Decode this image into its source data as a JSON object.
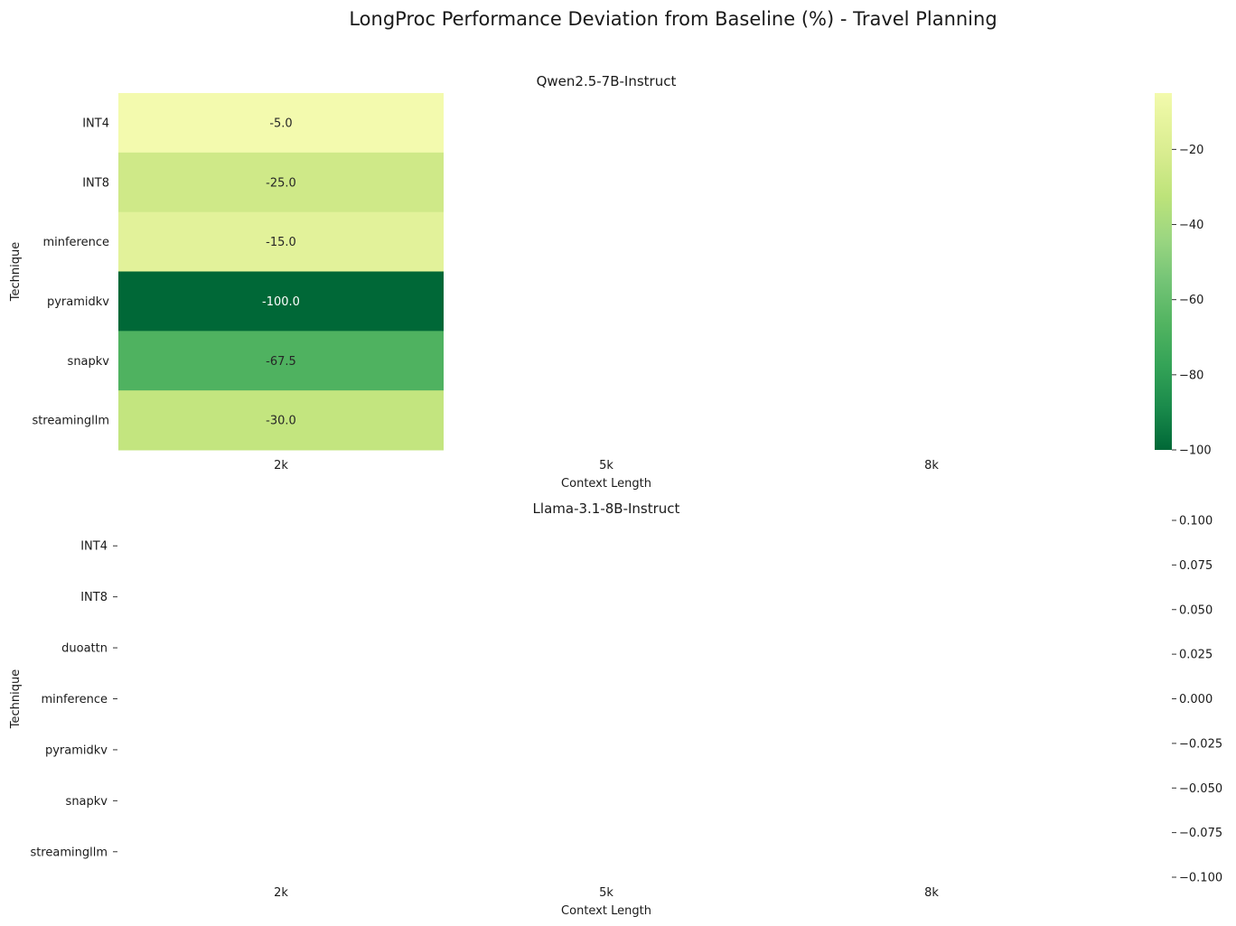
{
  "suptitle": "LongProc Performance Deviation from Baseline (%) - Travel Planning",
  "colormap": {
    "name": "YlGn",
    "stops": [
      {
        "v": -100,
        "c": "#006837"
      },
      {
        "v": -88.8,
        "c": "#1a8a4b"
      },
      {
        "v": -77.5,
        "c": "#34a357"
      },
      {
        "v": -66.3,
        "c": "#52b461"
      },
      {
        "v": -55.0,
        "c": "#74c476"
      },
      {
        "v": -43.8,
        "c": "#9bd681"
      },
      {
        "v": -32.5,
        "c": "#bde37a"
      },
      {
        "v": -21.3,
        "c": "#d8ec8f"
      },
      {
        "v": -10.0,
        "c": "#eaf6a2"
      },
      {
        "v": -5.0,
        "c": "#f3faae"
      }
    ]
  },
  "chart_data": [
    {
      "type": "heatmap",
      "title": "Qwen2.5-7B-Instruct",
      "xlabel": "Context Length",
      "ylabel": "Technique",
      "x_categories": [
        "2k",
        "5k",
        "8k"
      ],
      "y_categories": [
        "INT4",
        "INT8",
        "minference",
        "pyramidkv",
        "snapkv",
        "streamingllm"
      ],
      "values": [
        [
          -5.0,
          null,
          null
        ],
        [
          -25.0,
          null,
          null
        ],
        [
          -15.0,
          null,
          null
        ],
        [
          -100.0,
          null,
          null
        ],
        [
          -67.5,
          null,
          null
        ],
        [
          -30.0,
          null,
          null
        ]
      ],
      "annotations": [
        [
          "-5.0",
          "",
          ""
        ],
        [
          "-25.0",
          "",
          ""
        ],
        [
          "-15.0",
          "",
          ""
        ],
        [
          "-100.0",
          "",
          ""
        ],
        [
          "-67.5",
          "",
          ""
        ],
        [
          "-30.0",
          "",
          ""
        ]
      ],
      "colorbar": {
        "range": [
          -100,
          -5
        ],
        "ticks": [
          -20,
          -40,
          -60,
          -80,
          -100
        ],
        "tick_labels": [
          "−20",
          "−40",
          "−60",
          "−80",
          "−100"
        ]
      }
    },
    {
      "type": "heatmap",
      "title": "Llama-3.1-8B-Instruct",
      "xlabel": "Context Length",
      "ylabel": "Technique",
      "x_categories": [
        "2k",
        "5k",
        "8k"
      ],
      "y_categories": [
        "INT4",
        "INT8",
        "duoattn",
        "minference",
        "pyramidkv",
        "snapkv",
        "streamingllm"
      ],
      "values": [
        [
          null,
          null,
          null
        ],
        [
          null,
          null,
          null
        ],
        [
          null,
          null,
          null
        ],
        [
          null,
          null,
          null
        ],
        [
          null,
          null,
          null
        ],
        [
          null,
          null,
          null
        ],
        [
          null,
          null,
          null
        ]
      ],
      "colorbar": {
        "range": [
          -0.1,
          0.1
        ],
        "ticks": [
          0.1,
          0.075,
          0.05,
          0.025,
          0.0,
          -0.025,
          -0.05,
          -0.075,
          -0.1
        ],
        "tick_labels": [
          "0.100",
          "0.075",
          "0.050",
          "0.025",
          "0.000",
          "−0.025",
          "−0.050",
          "−0.075",
          "−0.100"
        ]
      }
    }
  ]
}
